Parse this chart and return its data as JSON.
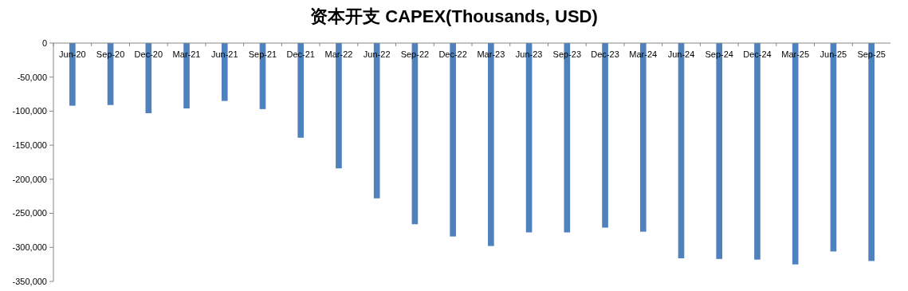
{
  "chart_data": {
    "type": "bar",
    "title": "资本开支 CAPEX(Thousands, USD)",
    "categories": [
      "Jun-20",
      "Sep-20",
      "Dec-20",
      "Mar-21",
      "Jun-21",
      "Sep-21",
      "Dec-21",
      "Mar-22",
      "Jun-22",
      "Sep-22",
      "Dec-22",
      "Mar-23",
      "Jun-23",
      "Sep-23",
      "Dec-23",
      "Mar-24",
      "Jun-24",
      "Sep-24",
      "Dec-24",
      "Mar-25",
      "Jun-25",
      "Sep-25"
    ],
    "values": [
      -92000,
      -91000,
      -103000,
      -96000,
      -85000,
      -97000,
      -139000,
      -184000,
      -228000,
      -266000,
      -284000,
      -298000,
      -278000,
      -278000,
      -271000,
      -277000,
      -316000,
      -317000,
      -318000,
      -325000,
      -306000,
      -320000
    ],
    "color": "#4f81bd",
    "ylim": [
      -350000,
      0
    ],
    "yticks": [
      {
        "value": 0,
        "label": "0"
      },
      {
        "value": -50000,
        "label": "-50,000"
      },
      {
        "value": -100000,
        "label": "-100,000"
      },
      {
        "value": -150000,
        "label": "-150,000"
      },
      {
        "value": -200000,
        "label": "-200,000"
      },
      {
        "value": -250000,
        "label": "-250,000"
      },
      {
        "value": -300000,
        "label": "-300,000"
      },
      {
        "value": -350000,
        "label": "-350,000"
      }
    ]
  }
}
